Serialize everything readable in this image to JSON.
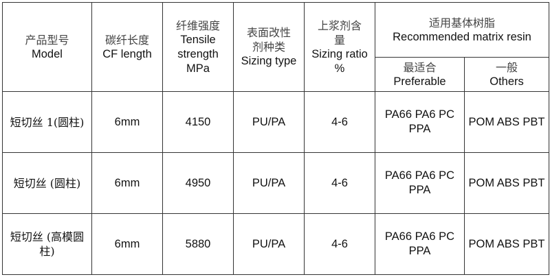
{
  "headers": {
    "model": {
      "zh": "产品型号",
      "en": "Model"
    },
    "cf_length": {
      "zh": "碳纤长度",
      "en": "CF length"
    },
    "tensile": {
      "zh": "纤维强度",
      "en1": "Tensile",
      "en2": "strength",
      "en3": "MPa"
    },
    "sizing_type": {
      "zh1": "表面改性",
      "zh2": "剂种类",
      "en": "Sizing type"
    },
    "sizing_ratio": {
      "zh1": "上浆剂含",
      "zh2": "量",
      "en": "Sizing ratio",
      "unit": "%"
    },
    "matrix": {
      "zh": "适用基体树脂",
      "en": "Recommended matrix resin"
    },
    "preferable": {
      "zh": "最适合",
      "en": "Preferable"
    },
    "others": {
      "zh": "一般",
      "en": "Others"
    }
  },
  "rows": [
    {
      "model": "短切丝 1(圆柱)",
      "cf_length": "6mm",
      "tensile": "4150",
      "sizing_type": "PU/PA",
      "sizing_ratio": "4-6",
      "preferable1": "PA66 PA6 PC",
      "preferable2": "PPA",
      "others": "POM ABS PBT"
    },
    {
      "model": "短切丝 (圆柱)",
      "cf_length": "6mm",
      "tensile": "4950",
      "sizing_type": "PU/PA",
      "sizing_ratio": "4-6",
      "preferable1": "PA66 PA6 PC",
      "preferable2": "PPA",
      "others": "POM ABS PBT"
    },
    {
      "model": "短切丝 (高模圆柱)",
      "cf_length": "6mm",
      "tensile": "5880",
      "sizing_type": "PU/PA",
      "sizing_ratio": "4-6",
      "preferable1": "PA66 PA6 PC",
      "preferable2": "PPA",
      "others": "POM ABS PBT"
    }
  ]
}
